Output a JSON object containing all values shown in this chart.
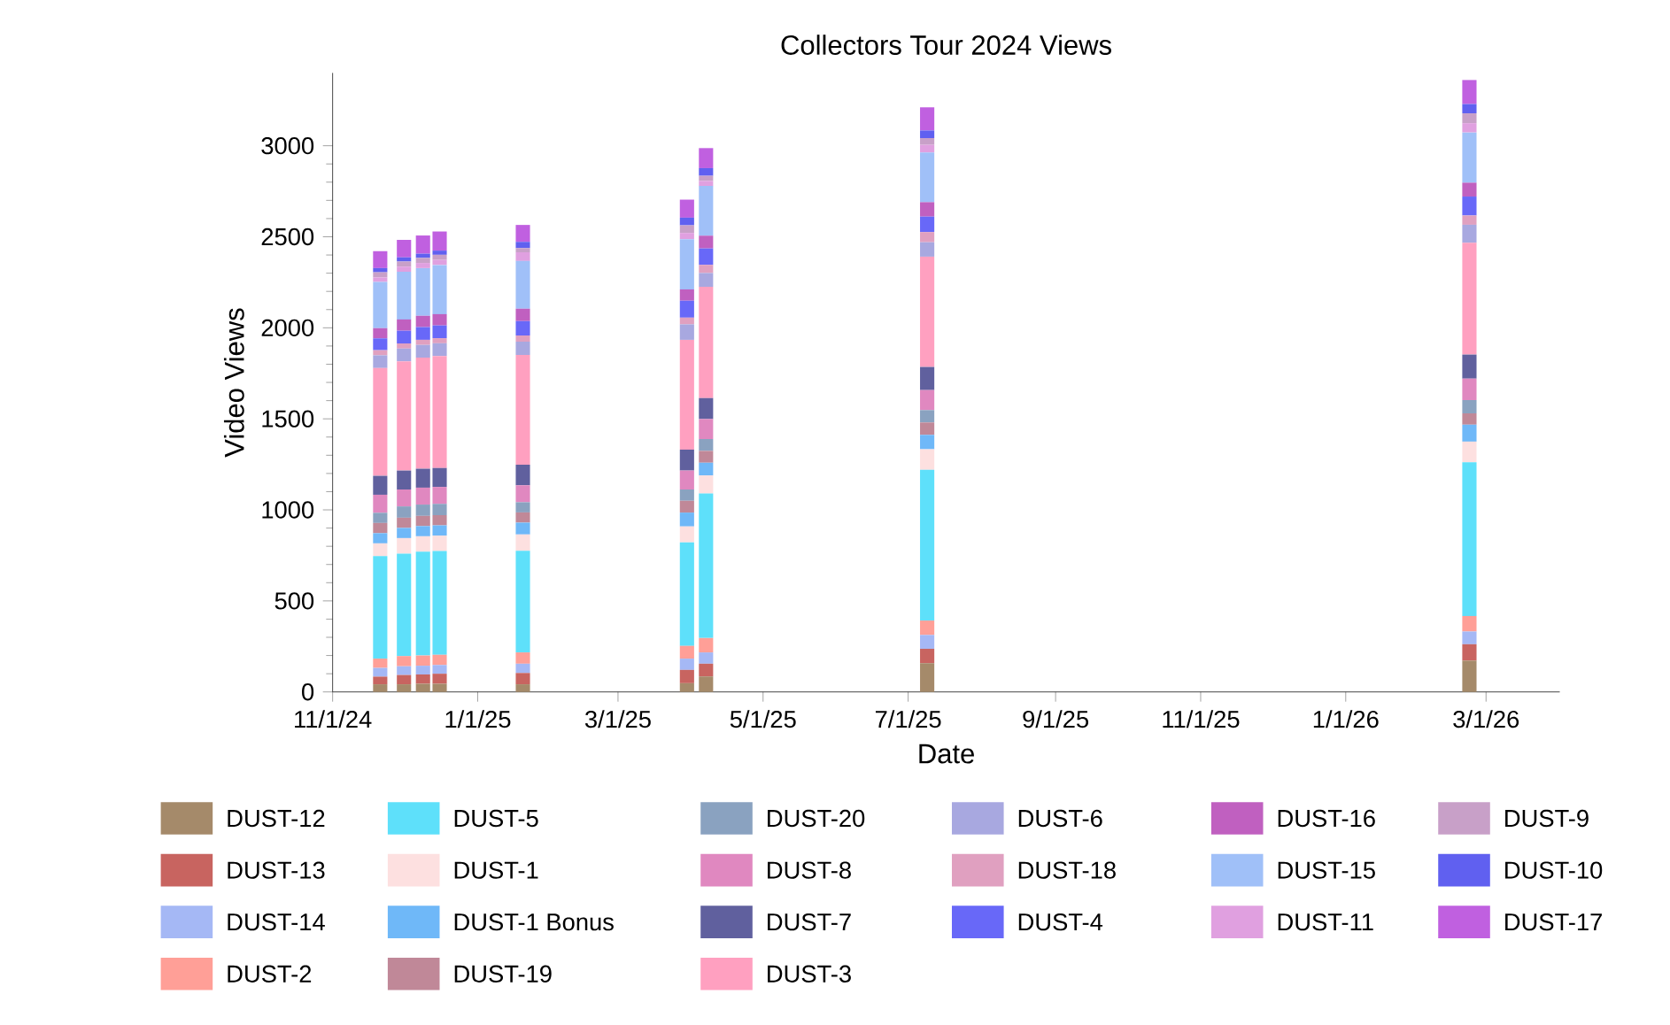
{
  "chart_data": {
    "type": "bar",
    "stacked": true,
    "title": "Collectors Tour 2024 Views",
    "xlabel": "Date",
    "ylabel": "Video Views",
    "legend": "bottom",
    "x": [
      "2024-11-21",
      "2024-12-01",
      "2024-12-09",
      "2024-12-16",
      "2025-01-20",
      "2025-03-30",
      "2025-04-07",
      "2025-07-09",
      "2026-02-22"
    ],
    "xlim": [
      "2024-11-01",
      "2026-04-01"
    ],
    "xticks": [
      {
        "value": "2024-11-01",
        "label": "11/1/24"
      },
      {
        "value": "2025-01-01",
        "label": "1/1/25"
      },
      {
        "value": "2025-03-01",
        "label": "3/1/25"
      },
      {
        "value": "2025-05-01",
        "label": "5/1/25"
      },
      {
        "value": "2025-07-01",
        "label": "7/1/25"
      },
      {
        "value": "2025-09-01",
        "label": "9/1/25"
      },
      {
        "value": "2025-11-01",
        "label": "11/1/25"
      },
      {
        "value": "2026-01-01",
        "label": "1/1/26"
      },
      {
        "value": "2026-03-01",
        "label": "3/1/26"
      }
    ],
    "ylim": [
      0,
      3400
    ],
    "yticks": [
      0,
      500,
      1000,
      1500,
      2000,
      2500,
      3000
    ],
    "series": [
      {
        "name": "DUST-12",
        "color": "#a58a6a",
        "values": [
          42,
          42,
          45,
          45,
          42,
          48,
          85,
          158,
          172
        ]
      },
      {
        "name": "DUST-13",
        "color": "#c86460",
        "values": [
          42,
          51,
          51,
          55,
          62,
          73,
          70,
          79,
          90
        ]
      },
      {
        "name": "DUST-14",
        "color": "#a5b8f5",
        "values": [
          48,
          48,
          48,
          48,
          51,
          62,
          62,
          76,
          70
        ]
      },
      {
        "name": "DUST-2",
        "color": "#ff9f97",
        "values": [
          51,
          56,
          56,
          56,
          62,
          70,
          79,
          79,
          85
        ]
      },
      {
        "name": "DUST-5",
        "color": "#5ee0fa",
        "values": [
          563,
          563,
          570,
          570,
          558,
          569,
          794,
          828,
          845
        ]
      },
      {
        "name": "DUST-1",
        "color": "#fde0e0",
        "values": [
          70,
          85,
          85,
          85,
          90,
          87,
          99,
          113,
          113
        ]
      },
      {
        "name": "DUST-1 Bonus",
        "color": "#6fb8f8",
        "values": [
          56,
          56,
          56,
          56,
          65,
          76,
          70,
          79,
          93
        ]
      },
      {
        "name": "DUST-19",
        "color": "#c08898",
        "values": [
          56,
          56,
          56,
          56,
          56,
          65,
          65,
          68,
          62
        ]
      },
      {
        "name": "DUST-20",
        "color": "#8aa2c0",
        "values": [
          56,
          62,
          62,
          62,
          56,
          62,
          65,
          68,
          73
        ]
      },
      {
        "name": "DUST-8",
        "color": "#e088c0",
        "values": [
          99,
          93,
          93,
          93,
          93,
          104,
          110,
          110,
          118
        ]
      },
      {
        "name": "DUST-7",
        "color": "#60609e",
        "values": [
          104,
          104,
          104,
          104,
          113,
          115,
          115,
          127,
          132
        ]
      },
      {
        "name": "DUST-3",
        "color": "#ffa0c0",
        "values": [
          592,
          600,
          610,
          615,
          603,
          603,
          611,
          606,
          614
        ]
      },
      {
        "name": "DUST-6",
        "color": "#a8a8e0",
        "values": [
          70,
          70,
          70,
          70,
          73,
          85,
          76,
          79,
          99
        ]
      },
      {
        "name": "DUST-18",
        "color": "#e0a0c0",
        "values": [
          28,
          28,
          28,
          28,
          34,
          37,
          45,
          56,
          51
        ]
      },
      {
        "name": "DUST-4",
        "color": "#6868f8",
        "values": [
          65,
          70,
          70,
          70,
          79,
          93,
          90,
          85,
          104
        ]
      },
      {
        "name": "DUST-16",
        "color": "#c060c0",
        "values": [
          56,
          62,
          62,
          62,
          68,
          62,
          70,
          79,
          76
        ]
      },
      {
        "name": "DUST-15",
        "color": "#a0c0f8",
        "values": [
          254,
          262,
          262,
          270,
          262,
          276,
          273,
          273,
          276
        ]
      },
      {
        "name": "DUST-11",
        "color": "#e0a0e0",
        "values": [
          25,
          28,
          28,
          28,
          48,
          34,
          28,
          42,
          51
        ]
      },
      {
        "name": "DUST-9",
        "color": "#c8a0c8",
        "values": [
          28,
          28,
          28,
          28,
          23,
          42,
          28,
          37,
          54
        ]
      },
      {
        "name": "DUST-10",
        "color": "#6060f0",
        "values": [
          23,
          23,
          23,
          23,
          34,
          42,
          42,
          42,
          51
        ]
      },
      {
        "name": "DUST-17",
        "color": "#c060e0",
        "values": [
          93,
          96,
          100,
          105,
          93,
          99,
          110,
          127,
          132
        ]
      }
    ]
  }
}
